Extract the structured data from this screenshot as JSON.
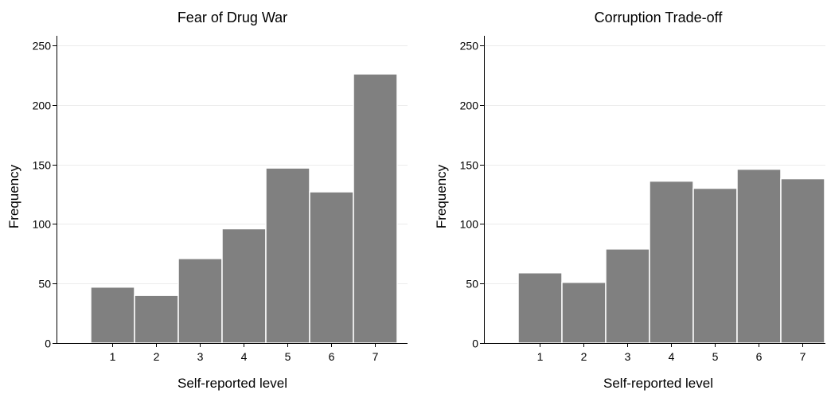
{
  "chart_data": [
    {
      "type": "bar",
      "title": "Fear of Drug War",
      "xlabel": "Self-reported level",
      "ylabel": "Frequency",
      "categories": [
        "1",
        "2",
        "3",
        "4",
        "5",
        "6",
        "7"
      ],
      "values": [
        47,
        40,
        71,
        96,
        147,
        127,
        226
      ],
      "ylim": [
        0,
        258
      ],
      "yticks": [
        0,
        50,
        100,
        150,
        200,
        250
      ],
      "grid": true,
      "bar_color": "#808080"
    },
    {
      "type": "bar",
      "title": "Corruption Trade-off",
      "xlabel": "Self-reported level",
      "ylabel": "Frequency",
      "categories": [
        "1",
        "2",
        "3",
        "4",
        "5",
        "6",
        "7"
      ],
      "values": [
        59,
        51,
        79,
        136,
        130,
        146,
        138
      ],
      "ylim": [
        0,
        258
      ],
      "yticks": [
        0,
        50,
        100,
        150,
        200,
        250
      ],
      "grid": true,
      "bar_color": "#808080"
    }
  ]
}
